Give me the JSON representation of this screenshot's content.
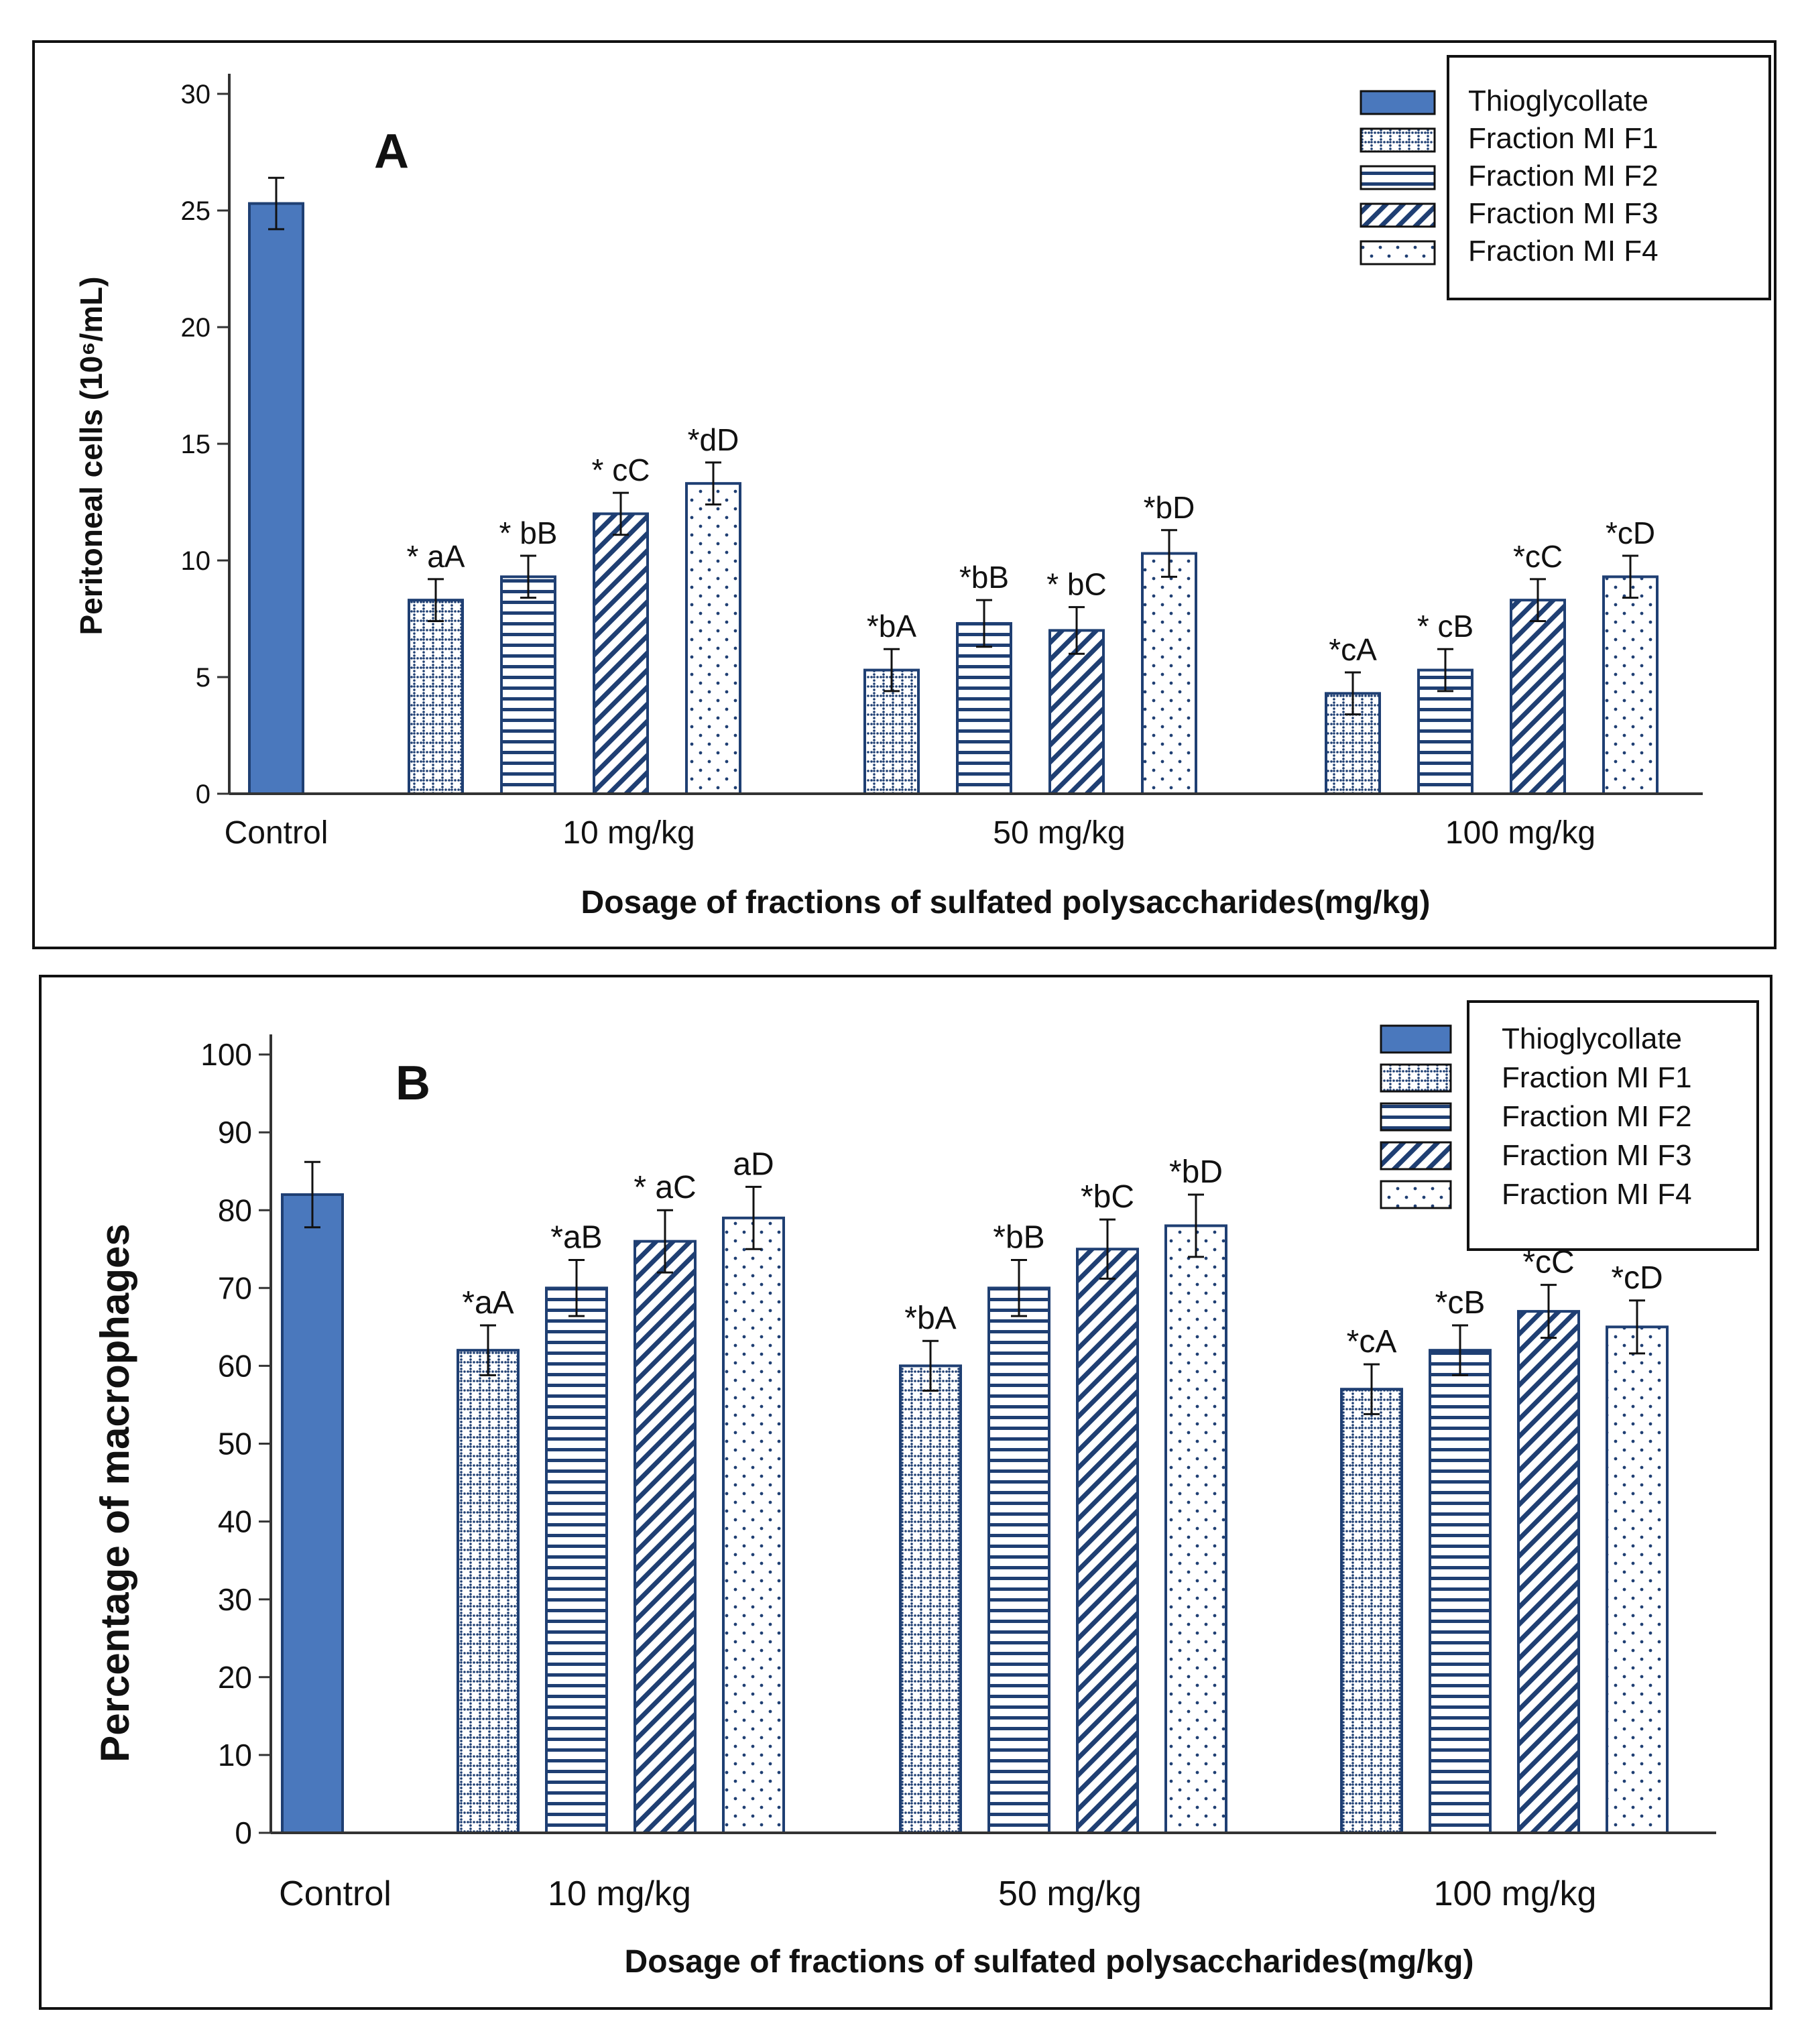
{
  "colors": {
    "thioglycollate": "#4a78bd",
    "pattern": "#1f3f73",
    "frame": "#111111",
    "panel_letter": "#a11a1a",
    "text": "#111111"
  },
  "chart_data": [
    {
      "type": "bar",
      "panel": "A",
      "title": "",
      "xlabel": "Dosage of fractions of sulfated polysaccharides(mg/kg)",
      "ylabel": "Peritoneal cells (10⁶/mL)",
      "ylim": [
        0,
        30
      ],
      "yticks": [
        "0",
        "5",
        "10",
        "15",
        "20",
        "25",
        "30"
      ],
      "categories": [
        "Control",
        "10  mg/kg",
        "50 mg/kg",
        "100 mg/kg"
      ],
      "legend_position": "top-right",
      "legend": [
        "Thioglycollate",
        "Fraction MI F1",
        "Fraction MI F2",
        "Fraction MI F3",
        "Fraction MI F4"
      ],
      "series": [
        {
          "name": "Thioglycollate",
          "pattern": "solid",
          "values": [
            25.3,
            null,
            null,
            null
          ],
          "errors": [
            1.1,
            null,
            null,
            null
          ],
          "labels": [
            "",
            "",
            "",
            ""
          ]
        },
        {
          "name": "Fraction MI F1",
          "pattern": "grid",
          "values": [
            null,
            8.3,
            5.3,
            4.3
          ],
          "errors": [
            null,
            0.9,
            0.9,
            0.9
          ],
          "labels": [
            "",
            "* aA",
            "*bA",
            "*cA"
          ]
        },
        {
          "name": "Fraction MI F2",
          "pattern": "hlines",
          "values": [
            null,
            9.3,
            7.3,
            5.3
          ],
          "errors": [
            null,
            0.9,
            1.0,
            0.9
          ],
          "labels": [
            "",
            "* bB",
            "*bB",
            "* cB"
          ]
        },
        {
          "name": "Fraction MI F3",
          "pattern": "diag",
          "values": [
            null,
            12.0,
            7.0,
            8.3
          ],
          "errors": [
            null,
            0.9,
            1.0,
            0.9
          ],
          "labels": [
            "",
            "* cC",
            "* bC",
            "*cC"
          ]
        },
        {
          "name": "Fraction MI F4",
          "pattern": "dots",
          "values": [
            null,
            13.3,
            10.3,
            9.3
          ],
          "errors": [
            null,
            0.9,
            1.0,
            0.9
          ],
          "labels": [
            "",
            "*dD",
            "*bD",
            "*cD"
          ]
        }
      ]
    },
    {
      "type": "bar",
      "panel": "B",
      "title": "",
      "xlabel": "Dosage of fractions of sulfated polysaccharides(mg/kg)",
      "ylabel": "Percentage of macrophages",
      "ylim": [
        0,
        100
      ],
      "yticks": [
        "0",
        "10",
        "20",
        "30",
        "40",
        "50",
        "60",
        "70",
        "80",
        "90",
        "100"
      ],
      "categories": [
        "Control",
        "10  mg/kg",
        "50 mg/kg",
        "100 mg/kg"
      ],
      "legend_position": "top-right",
      "legend": [
        "Thioglycollate",
        "Fraction MI F1",
        "Fraction MI F2",
        "Fraction MI F3",
        "Fraction MI F4"
      ],
      "series": [
        {
          "name": "Thioglycollate",
          "pattern": "solid",
          "values": [
            82,
            null,
            null,
            null
          ],
          "errors": [
            4.2,
            null,
            null,
            null
          ],
          "labels": [
            "",
            "",
            "",
            ""
          ]
        },
        {
          "name": "Fraction MI F1",
          "pattern": "grid",
          "values": [
            null,
            62,
            60,
            57
          ],
          "errors": [
            null,
            3.2,
            3.2,
            3.2
          ],
          "labels": [
            "",
            "*aA",
            "*bA",
            "*cA"
          ]
        },
        {
          "name": "Fraction MI F2",
          "pattern": "hlines",
          "values": [
            null,
            70,
            70,
            62
          ],
          "errors": [
            null,
            3.6,
            3.6,
            3.2
          ],
          "labels": [
            "",
            "*aB",
            "*bB",
            "*cB"
          ]
        },
        {
          "name": "Fraction MI F3",
          "pattern": "diag",
          "values": [
            null,
            76,
            75,
            67
          ],
          "errors": [
            null,
            4.0,
            3.8,
            3.4
          ],
          "labels": [
            "",
            "* aC",
            "*bC",
            "*cC"
          ]
        },
        {
          "name": "Fraction MI F4",
          "pattern": "dots",
          "values": [
            null,
            79,
            78,
            65
          ],
          "errors": [
            null,
            4.0,
            4.0,
            3.4
          ],
          "labels": [
            "",
            "aD",
            "*bD",
            "*cD"
          ]
        }
      ]
    }
  ]
}
